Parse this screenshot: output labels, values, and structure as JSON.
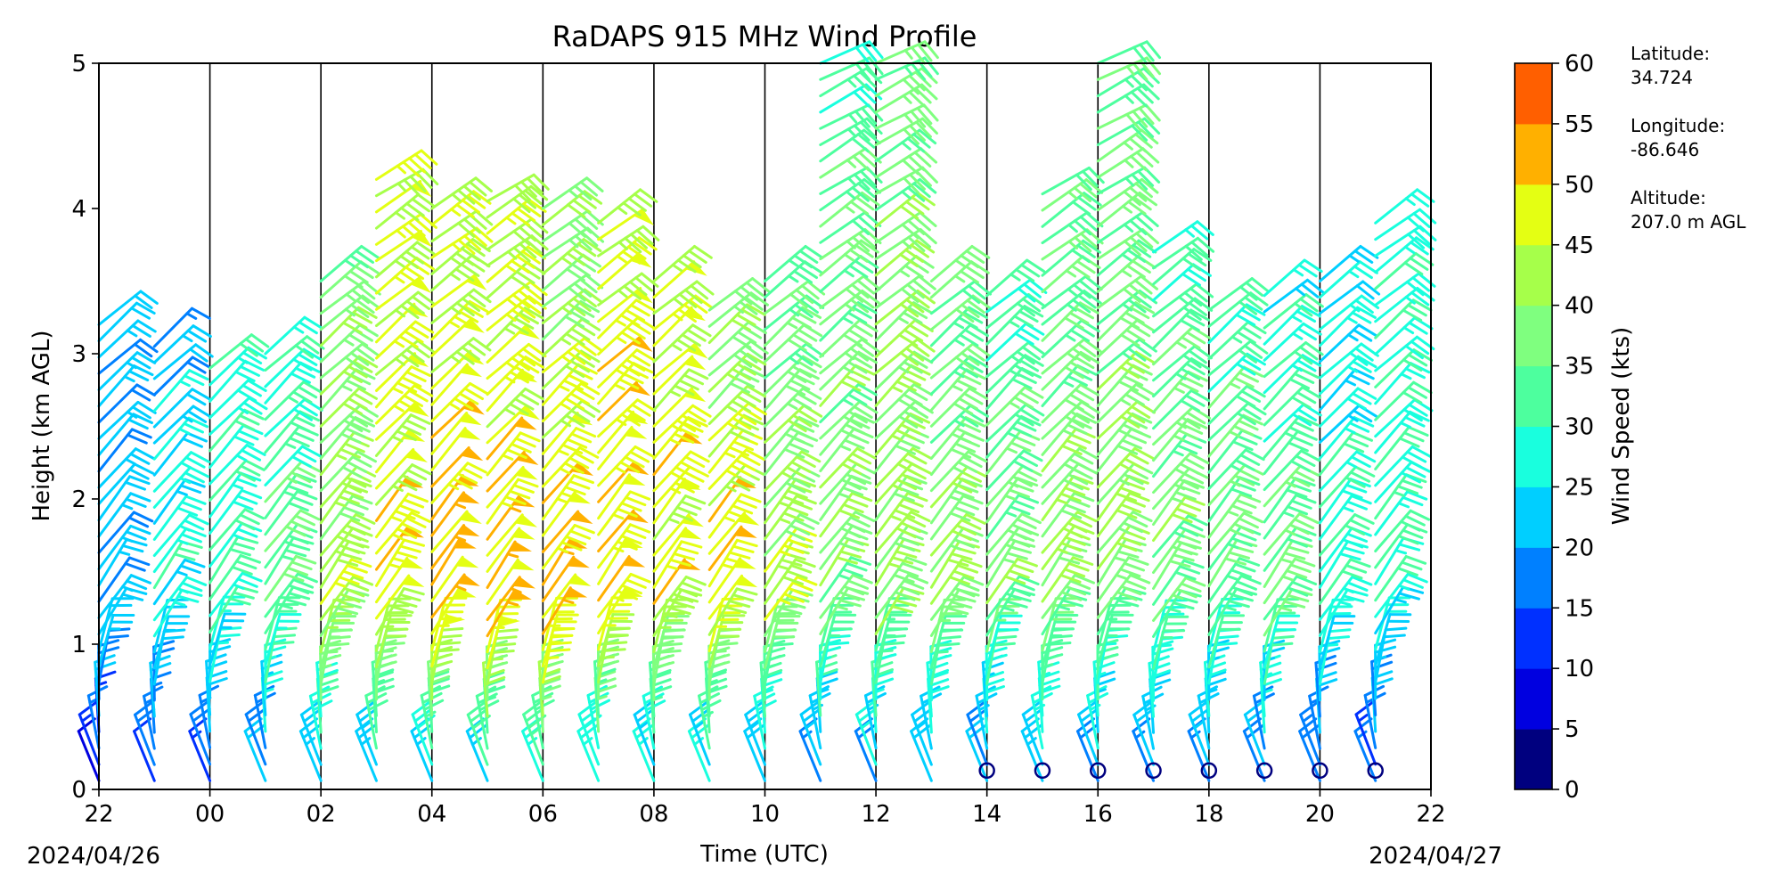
{
  "chart_data": {
    "type": "wind_barbs",
    "title": "RaDAPS 915 MHz Wind Profile",
    "xlabel": "Time (UTC)",
    "ylabel": "Height (km AGL)",
    "x_ticks": [
      "22",
      "00",
      "02",
      "04",
      "06",
      "08",
      "10",
      "12",
      "14",
      "16",
      "18",
      "20",
      "22"
    ],
    "x_tick_hours": [
      -2,
      0,
      2,
      4,
      6,
      8,
      10,
      12,
      14,
      16,
      18,
      20,
      22
    ],
    "y_ticks": [
      "0",
      "1",
      "2",
      "3",
      "4",
      "5"
    ],
    "xlim_hours": [
      -2,
      22
    ],
    "ylim_km": [
      0,
      5
    ],
    "date_start": "2024/04/26",
    "date_end": "2024/04/27",
    "colorbar": {
      "label": "Wind Speed (kts)",
      "bounds": [
        0,
        5,
        10,
        15,
        20,
        25,
        30,
        35,
        40,
        45,
        50,
        55,
        60
      ],
      "tick_labels": [
        "0",
        "5",
        "10",
        "15",
        "20",
        "25",
        "30",
        "35",
        "40",
        "45",
        "50",
        "55",
        "60"
      ],
      "colors": [
        "#00007f",
        "#0000e0",
        "#0030ff",
        "#0080ff",
        "#00cfff",
        "#19ffde",
        "#4dff9e",
        "#7fff7f",
        "#a6ff4a",
        "#e4ff13",
        "#ffb000",
        "#ff5f00",
        "#e41a00",
        "#7f0000"
      ]
    },
    "station": {
      "lat_label": "Latitude:",
      "lat_value": "34.724",
      "lon_label": "Longitude:",
      "lon_value": "-86.646",
      "alt_label": "Altitude:",
      "alt_value": "207.0 m AGL"
    },
    "profiles": [
      {
        "hour": -2.0,
        "top_km": 3.2,
        "max_speed": 22,
        "peak_km": 0.8,
        "upper_speed": 22
      },
      {
        "hour": -1.0,
        "top_km": 3.05,
        "max_speed": 28,
        "peak_km": 1.4,
        "upper_speed": 20
      },
      {
        "hour": 0.0,
        "top_km": 2.9,
        "max_speed": 30,
        "peak_km": 1.3,
        "upper_speed": 28
      },
      {
        "hour": 1.0,
        "top_km": 3.0,
        "max_speed": 36,
        "peak_km": 1.4,
        "upper_speed": 28
      },
      {
        "hour": 2.0,
        "top_km": 3.5,
        "max_speed": 44,
        "peak_km": 1.2,
        "upper_speed": 36
      },
      {
        "hour": 3.0,
        "top_km": 4.2,
        "max_speed": 48,
        "peak_km": 1.3,
        "upper_speed": 46
      },
      {
        "hour": 4.0,
        "top_km": 4.0,
        "max_speed": 52,
        "peak_km": 1.2,
        "upper_speed": 44
      },
      {
        "hour": 5.0,
        "top_km": 4.05,
        "max_speed": 52,
        "peak_km": 1.1,
        "upper_speed": 42
      },
      {
        "hour": 6.0,
        "top_km": 4.0,
        "max_speed": 52,
        "peak_km": 1.1,
        "upper_speed": 38
      },
      {
        "hour": 7.0,
        "top_km": 3.9,
        "max_speed": 50,
        "peak_km": 1.2,
        "upper_speed": 46
      },
      {
        "hour": 8.0,
        "top_km": 3.5,
        "max_speed": 48,
        "peak_km": 1.3,
        "upper_speed": 46
      },
      {
        "hour": 9.0,
        "top_km": 3.3,
        "max_speed": 50,
        "peak_km": 1.4,
        "upper_speed": 38
      },
      {
        "hour": 10.0,
        "top_km": 3.5,
        "max_speed": 44,
        "peak_km": 1.3,
        "upper_speed": 34
      },
      {
        "hour": 11.0,
        "top_km": 5.0,
        "max_speed": 40,
        "peak_km": 1.5,
        "upper_speed": 32
      },
      {
        "hour": 12.0,
        "top_km": 5.0,
        "max_speed": 42,
        "peak_km": 1.4,
        "upper_speed": 36
      },
      {
        "hour": 13.0,
        "top_km": 3.5,
        "max_speed": 40,
        "peak_km": 1.3,
        "upper_speed": 34
      },
      {
        "hour": 14.0,
        "top_km": 3.4,
        "max_speed": 38,
        "peak_km": 1.3,
        "upper_speed": 30
      },
      {
        "hour": 15.0,
        "top_km": 4.1,
        "max_speed": 42,
        "peak_km": 1.4,
        "upper_speed": 32
      },
      {
        "hour": 16.0,
        "top_km": 5.0,
        "max_speed": 40,
        "peak_km": 1.6,
        "upper_speed": 34
      },
      {
        "hour": 17.0,
        "top_km": 3.7,
        "max_speed": 38,
        "peak_km": 1.5,
        "upper_speed": 30
      },
      {
        "hour": 18.0,
        "top_km": 3.3,
        "max_speed": 36,
        "peak_km": 1.4,
        "upper_speed": 30
      },
      {
        "hour": 19.0,
        "top_km": 3.4,
        "max_speed": 36,
        "peak_km": 1.3,
        "upper_speed": 26
      },
      {
        "hour": 20.0,
        "top_km": 3.5,
        "max_speed": 30,
        "peak_km": 1.4,
        "upper_speed": 24
      },
      {
        "hour": 21.0,
        "top_km": 3.9,
        "max_speed": 30,
        "peak_km": 1.5,
        "upper_speed": 28
      }
    ],
    "calm_markers_hours": [
      14.0,
      15.0,
      16.0,
      17.0,
      18.0,
      19.0,
      20.0,
      21.0
    ]
  }
}
